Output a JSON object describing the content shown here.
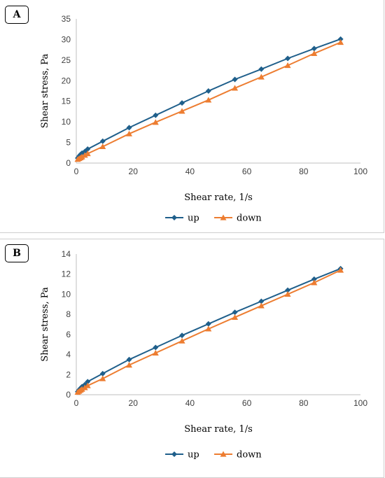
{
  "chart_data": [
    {
      "type": "line",
      "panel_label": "A",
      "xlabel": "Shear rate, 1/s",
      "ylabel": "Shear stress, Pa",
      "xlim": [
        0,
        100
      ],
      "ylim": [
        0,
        35
      ],
      "xticks": [
        0,
        20,
        40,
        60,
        80,
        100
      ],
      "yticks": [
        0,
        5,
        10,
        15,
        20,
        25,
        30,
        35
      ],
      "grid": false,
      "legend_position": "bottom",
      "series": [
        {
          "name": "up",
          "color": "#1f5f8b",
          "marker": "diamond",
          "x": [
            0.5,
            1,
            1.5,
            2,
            3,
            4,
            9.3,
            18.6,
            27.9,
            37.2,
            46.5,
            55.8,
            65.1,
            74.4,
            83.7,
            93
          ],
          "y": [
            1.2,
            1.7,
            2.1,
            2.4,
            2.8,
            3.4,
            5.3,
            8.6,
            11.6,
            14.6,
            17.5,
            20.3,
            22.8,
            25.4,
            27.8,
            30.1
          ]
        },
        {
          "name": "down",
          "color": "#ed7d31",
          "marker": "triangle",
          "x": [
            0.5,
            1,
            1.5,
            2,
            3,
            4,
            9.3,
            18.6,
            27.9,
            37.2,
            46.5,
            55.8,
            65.1,
            74.4,
            83.7,
            93
          ],
          "y": [
            0.9,
            1.1,
            1.3,
            1.5,
            1.9,
            2.3,
            4.0,
            7.1,
            9.9,
            12.6,
            15.3,
            18.2,
            20.9,
            23.7,
            26.6,
            29.3
          ]
        }
      ]
    },
    {
      "type": "line",
      "panel_label": "B",
      "xlabel": "Shear rate, 1/s",
      "ylabel": "Shear stress, Pa",
      "xlim": [
        0,
        100
      ],
      "ylim": [
        0,
        14
      ],
      "xticks": [
        0,
        20,
        40,
        60,
        80,
        100
      ],
      "yticks": [
        0,
        2,
        4,
        6,
        8,
        10,
        12,
        14
      ],
      "grid": false,
      "legend_position": "bottom",
      "series": [
        {
          "name": "up",
          "color": "#1f5f8b",
          "marker": "diamond",
          "x": [
            0.5,
            1,
            1.5,
            2,
            3,
            4,
            9.3,
            18.6,
            27.9,
            37.2,
            46.5,
            55.8,
            65.1,
            74.4,
            83.7,
            93
          ],
          "y": [
            0.3,
            0.5,
            0.65,
            0.8,
            1.0,
            1.3,
            2.1,
            3.5,
            4.7,
            5.9,
            7.05,
            8.2,
            9.3,
            10.4,
            11.5,
            12.55
          ]
        },
        {
          "name": "down",
          "color": "#ed7d31",
          "marker": "triangle",
          "x": [
            0.5,
            1,
            1.5,
            2,
            3,
            4,
            9.3,
            18.6,
            27.9,
            37.2,
            46.5,
            55.8,
            65.1,
            74.4,
            83.7,
            93
          ],
          "y": [
            0.25,
            0.35,
            0.45,
            0.55,
            0.7,
            0.9,
            1.6,
            2.95,
            4.15,
            5.35,
            6.55,
            7.7,
            8.85,
            10.0,
            11.15,
            12.4
          ]
        }
      ]
    }
  ]
}
